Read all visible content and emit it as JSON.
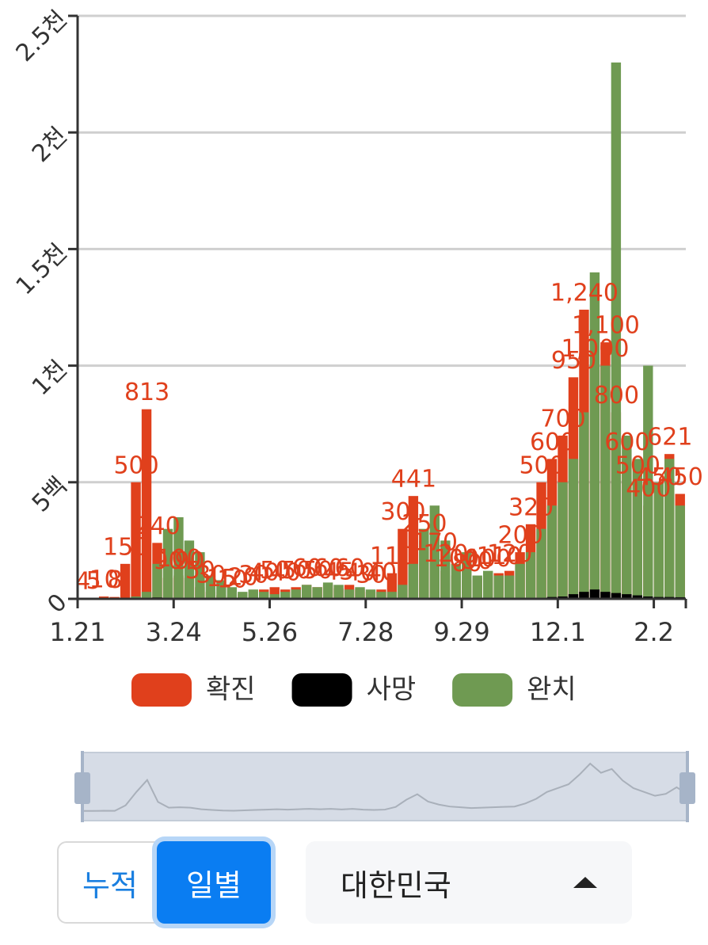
{
  "chart_data": {
    "type": "bar",
    "categories": [
      "1.21",
      null,
      null,
      null,
      null,
      null,
      null,
      null,
      null,
      "3.24",
      null,
      null,
      null,
      null,
      null,
      null,
      null,
      null,
      "5.26",
      null,
      null,
      null,
      null,
      null,
      null,
      null,
      null,
      "7.28",
      null,
      null,
      null,
      null,
      null,
      null,
      null,
      null,
      "9.29",
      null,
      null,
      null,
      null,
      null,
      null,
      null,
      null,
      "12.1",
      null,
      null,
      null,
      null,
      null,
      null,
      null,
      null,
      "2.2",
      null,
      null
    ],
    "series": [
      {
        "name": "확진",
        "color": "#e0401c",
        "values": [
          4,
          5,
          10,
          8,
          150,
          500,
          813,
          240,
          90,
          100,
          90,
          50,
          30,
          15,
          10,
          20,
          30,
          40,
          50,
          40,
          50,
          60,
          50,
          60,
          45,
          60,
          40,
          30,
          40,
          110,
          300,
          441,
          250,
          170,
          120,
          100,
          80,
          90,
          100,
          110,
          120,
          200,
          320,
          500,
          600,
          700,
          950,
          1240,
          1000,
          1100,
          800,
          600,
          500,
          400,
          450,
          621,
          450
        ],
        "value_labels": [
          "4",
          "5",
          "10",
          "8",
          "150",
          "500",
          "813",
          "240",
          "90",
          "100",
          "90",
          "50",
          "30",
          "15",
          "10",
          "20",
          "30",
          "40",
          "50",
          "40",
          "50",
          "60",
          "50",
          "60",
          "45",
          "60",
          "40",
          "30",
          "40",
          "110",
          "300",
          "441",
          "250",
          "170",
          "120",
          "100",
          "80",
          "90",
          "100",
          "110",
          "120",
          "200",
          "320",
          "500",
          "600",
          "700",
          "950",
          "1,240",
          "1,000",
          "1,100",
          "800",
          "600",
          "500",
          "400",
          "450",
          "621",
          "450"
        ]
      },
      {
        "name": "사망",
        "color": "#000000",
        "values": [
          0,
          0,
          0,
          0,
          1,
          3,
          5,
          6,
          4,
          3,
          3,
          2,
          1,
          1,
          1,
          1,
          0,
          1,
          1,
          1,
          1,
          1,
          1,
          1,
          1,
          0,
          1,
          1,
          1,
          1,
          2,
          3,
          4,
          4,
          3,
          3,
          3,
          2,
          2,
          2,
          2,
          2,
          3,
          5,
          8,
          10,
          20,
          30,
          40,
          30,
          25,
          20,
          15,
          10,
          8,
          8,
          7
        ]
      },
      {
        "name": "완치",
        "color": "#6f9a52",
        "values": [
          0,
          0,
          1,
          3,
          2,
          10,
          30,
          150,
          300,
          350,
          250,
          200,
          100,
          80,
          50,
          30,
          40,
          30,
          20,
          30,
          40,
          60,
          50,
          70,
          60,
          40,
          50,
          40,
          30,
          30,
          60,
          150,
          300,
          400,
          250,
          150,
          200,
          100,
          120,
          100,
          100,
          150,
          200,
          300,
          400,
          500,
          600,
          800,
          1400,
          1000,
          2300,
          700,
          600,
          1000,
          500,
          600,
          400
        ]
      }
    ],
    "ylim": [
      0,
      2500
    ],
    "yticks": [
      0,
      {
        "value": 500,
        "label": "5백"
      },
      {
        "value": 1000,
        "label": "1천"
      },
      {
        "value": 1500,
        "label": "1.5천"
      },
      {
        "value": 2000,
        "label": "2천"
      },
      {
        "value": 2500,
        "label": "2.5천"
      }
    ],
    "grid": true
  },
  "controls": {
    "toggle": [
      "누적",
      "일별"
    ],
    "region": "대한민국"
  }
}
